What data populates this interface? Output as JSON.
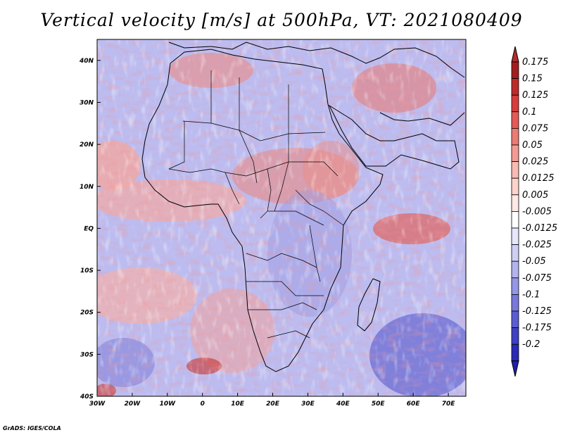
{
  "title": "Vertical velocity [m/s] at 500hPa, VT: 2021080409",
  "credit": "GrADS: IGES/COLA",
  "map": {
    "lon_range": [
      -30,
      75
    ],
    "lat_range": [
      -40,
      45
    ],
    "x_ticks": [
      {
        "value": -30,
        "label": "30W"
      },
      {
        "value": -20,
        "label": "20W"
      },
      {
        "value": -10,
        "label": "10W"
      },
      {
        "value": 0,
        "label": "0"
      },
      {
        "value": 10,
        "label": "10E"
      },
      {
        "value": 20,
        "label": "20E"
      },
      {
        "value": 30,
        "label": "30E"
      },
      {
        "value": 40,
        "label": "40E"
      },
      {
        "value": 50,
        "label": "50E"
      },
      {
        "value": 60,
        "label": "60E"
      },
      {
        "value": 70,
        "label": "70E"
      }
    ],
    "y_ticks": [
      {
        "value": 40,
        "label": "40N"
      },
      {
        "value": 30,
        "label": "30N"
      },
      {
        "value": 20,
        "label": "20N"
      },
      {
        "value": 10,
        "label": "10N"
      },
      {
        "value": 0,
        "label": "EQ"
      },
      {
        "value": -10,
        "label": "10S"
      },
      {
        "value": -20,
        "label": "20S"
      },
      {
        "value": -30,
        "label": "30S"
      },
      {
        "value": -40,
        "label": "40S"
      }
    ]
  },
  "colorbar": {
    "levels": [
      {
        "label": "0.175",
        "color": "#a11e1e"
      },
      {
        "label": "0.15",
        "color": "#bd2a2a"
      },
      {
        "label": "0.125",
        "color": "#d53c3c"
      },
      {
        "label": "0.1",
        "color": "#e25a56"
      },
      {
        "label": "0.075",
        "color": "#ec7b74"
      },
      {
        "label": "0.05",
        "color": "#f39b93"
      },
      {
        "label": "0.025",
        "color": "#f8bab3"
      },
      {
        "label": "0.0125",
        "color": "#fbd3cd"
      },
      {
        "label": "0.005",
        "color": "#fde9e5"
      },
      {
        "label": "-0.005",
        "color": "#ffffff"
      },
      {
        "label": "-0.0125",
        "color": "#e7e7fb"
      },
      {
        "label": "-0.025",
        "color": "#cfcff5"
      },
      {
        "label": "-0.05",
        "color": "#b3b3ee"
      },
      {
        "label": "-0.075",
        "color": "#9696e6"
      },
      {
        "label": "-0.1",
        "color": "#7979dc"
      },
      {
        "label": "-0.125",
        "color": "#5c5cd2"
      },
      {
        "label": "-0.175",
        "color": "#4040c4"
      },
      {
        "label": "-0.2",
        "color": "#2a2ab5"
      }
    ],
    "top_color": "#b52a2a",
    "bottom_color": "#2020a8"
  }
}
